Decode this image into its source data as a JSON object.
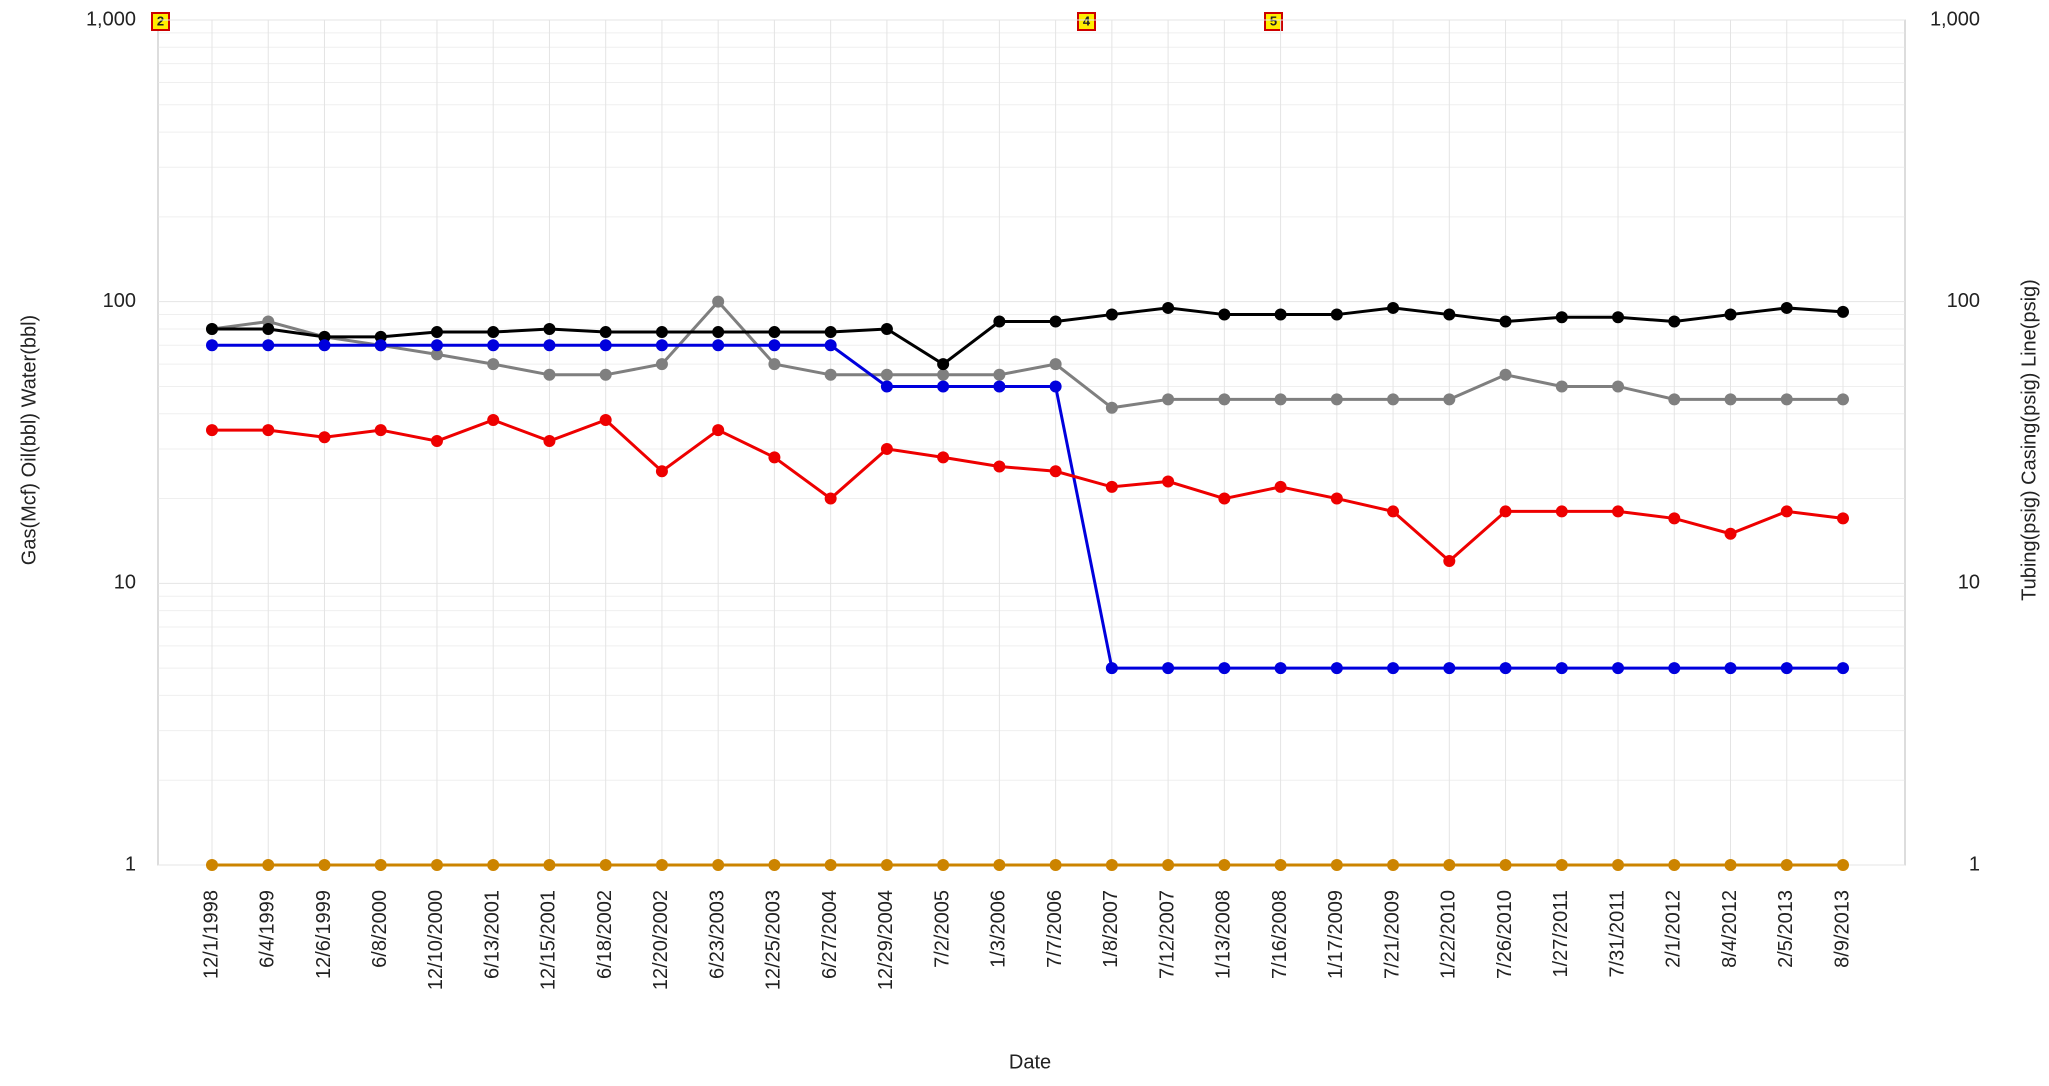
{
  "chart_data": {
    "type": "line",
    "y_label": "Gas(Mcf) Oil(bbl) Water(bbl)",
    "y2_label": "Tubing(psig) Casing(psig) Line(psig)",
    "x_label": "Date",
    "annotations": [
      "2",
      "4",
      "5"
    ],
    "log_scale": true,
    "grid": true,
    "ylim": [
      1,
      1000
    ],
    "yticks": [
      1,
      10,
      100,
      {
        "value": 1000,
        "label": "1,000"
      }
    ],
    "y2lim": [
      1,
      1000
    ],
    "y2ticks": [
      1,
      10,
      100,
      {
        "value": 1000,
        "label": "1,000"
      }
    ],
    "categories": [
      "12/1/1998",
      "6/4/1999",
      "12/6/1999",
      "6/8/2000",
      "12/10/2000",
      "6/13/2001",
      "12/15/2001",
      "6/18/2002",
      "12/20/2002",
      "6/23/2003",
      "12/25/2003",
      "6/27/2004",
      "12/29/2004",
      "7/2/2005",
      "1/3/2006",
      "7/7/2006",
      "1/8/2007",
      "7/12/2007",
      "1/13/2008",
      "7/16/2008",
      "1/17/2009",
      "7/21/2009",
      "1/22/2010",
      "7/26/2010",
      "1/27/2011",
      "7/31/2011",
      "2/1/2012",
      "8/4/2012",
      "2/5/2013",
      "8/9/2013"
    ],
    "series": [
      {
        "color": "#7f7f7f",
        "axis": "y2",
        "values": [
          80,
          85,
          75,
          70,
          65,
          60,
          55,
          55,
          60,
          100,
          60,
          55,
          55,
          55,
          55,
          60,
          42,
          45,
          45,
          45,
          45,
          45,
          45,
          55,
          50,
          50,
          45,
          45,
          45,
          45
        ]
      },
      {
        "color": "#000000",
        "axis": "y2",
        "values": [
          80,
          80,
          75,
          75,
          78,
          78,
          80,
          78,
          78,
          78,
          78,
          78,
          80,
          60,
          85,
          85,
          90,
          95,
          90,
          90,
          90,
          95,
          90,
          85,
          88,
          88,
          85,
          90,
          95,
          92
        ]
      },
      {
        "color": "#cc8400",
        "values": [
          1,
          1,
          1,
          1,
          1,
          1,
          1,
          1,
          1,
          1,
          1,
          1,
          1,
          1,
          1,
          1,
          1,
          1,
          1,
          1,
          1,
          1,
          1,
          1,
          1,
          1,
          1,
          1,
          1,
          1
        ]
      },
      {
        "color": "#0000dd",
        "values": [
          70,
          70,
          70,
          70,
          70,
          70,
          70,
          70,
          70,
          70,
          70,
          70,
          50,
          50,
          50,
          50,
          5,
          5,
          5,
          5,
          5,
          5,
          5,
          5,
          5,
          5,
          5,
          5,
          5,
          5
        ]
      },
      {
        "color": "#ee0000",
        "values": [
          35,
          35,
          33,
          35,
          32,
          38,
          32,
          38,
          25,
          35,
          28,
          20,
          30,
          28,
          26,
          25,
          22,
          23,
          20,
          22,
          20,
          18,
          12,
          18,
          18,
          18,
          17,
          15,
          18,
          17
        ]
      }
    ]
  }
}
